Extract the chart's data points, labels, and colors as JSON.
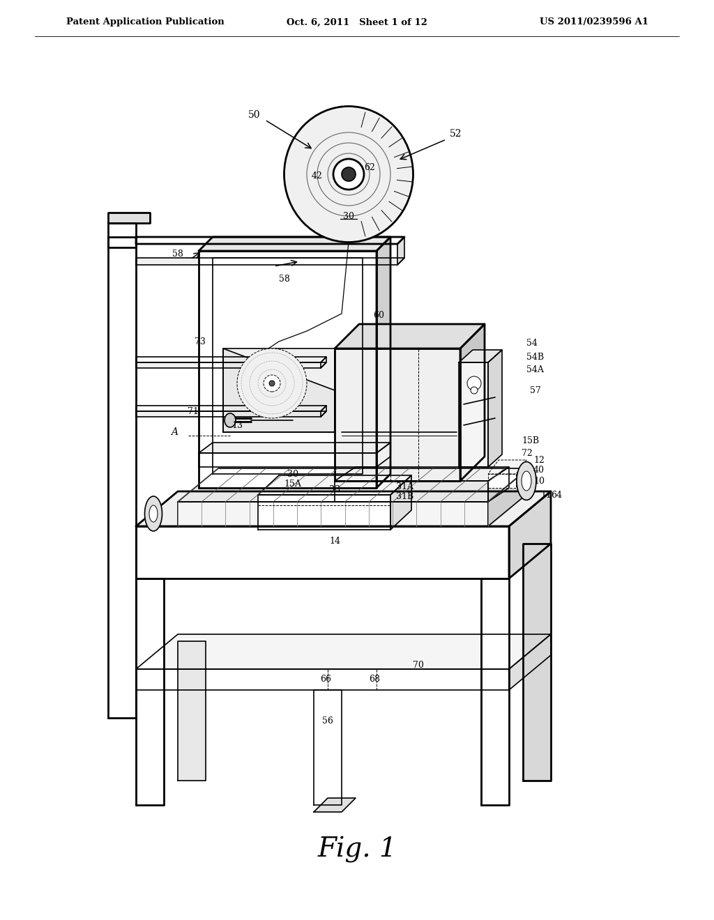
{
  "bg": "#ffffff",
  "lc": "#000000",
  "header_left": "Patent Application Publication",
  "header_center": "Oct. 6, 2011   Sheet 1 of 12",
  "header_right": "US 2011/0239596 A1",
  "fig_label": "Fig. 1",
  "lw": 1.2,
  "lwt": 2.0,
  "lwn": 0.7
}
